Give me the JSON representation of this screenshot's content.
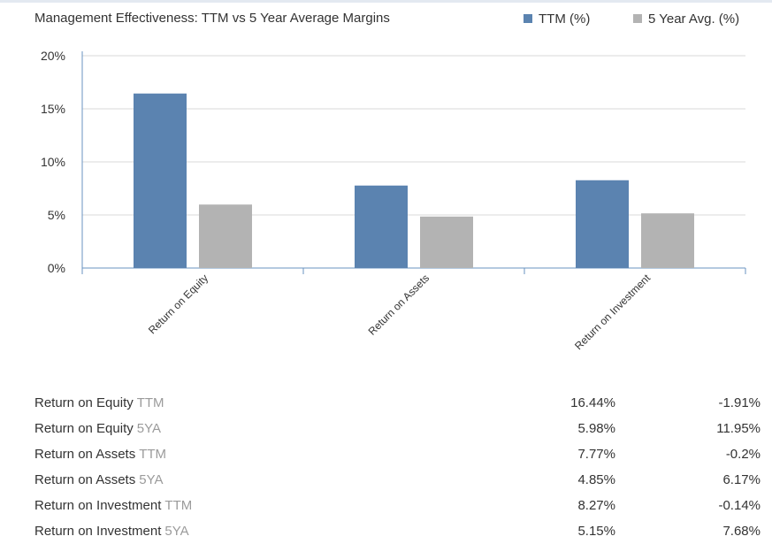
{
  "colors": {
    "ttm": "#5b83b0",
    "avg": "#b3b3b3",
    "axis": "#6a93c2",
    "grid": "#d9d9d9",
    "text": "#333333",
    "muted": "#9b9b9b"
  },
  "chart_data": {
    "type": "bar",
    "title": "Management Effectiveness: TTM vs 5 Year Average Margins",
    "categories": [
      "Return on Equity",
      "Return on Assets",
      "Return on Investment"
    ],
    "series": [
      {
        "name": "TTM (%)",
        "color": "#5b83b0",
        "values": [
          16.44,
          7.77,
          8.27
        ]
      },
      {
        "name": "5 Year Avg. (%)",
        "color": "#b3b3b3",
        "values": [
          5.98,
          4.85,
          5.15
        ]
      }
    ],
    "ylim": [
      0,
      20
    ],
    "yticks": [
      0,
      5,
      10,
      15,
      20
    ],
    "ytick_labels": [
      "0%",
      "5%",
      "10%",
      "15%",
      "20%"
    ],
    "xlabel": "",
    "ylabel": "",
    "grid": true,
    "legend_position": "top-right"
  },
  "table": {
    "rows": [
      {
        "label": "Return on Equity",
        "suffix": "TTM",
        "company": "16.44%",
        "industry": "-1.91%"
      },
      {
        "label": "Return on Equity",
        "suffix": "5YA",
        "company": "5.98%",
        "industry": "11.95%"
      },
      {
        "label": "Return on Assets",
        "suffix": "TTM",
        "company": "7.77%",
        "industry": "-0.2%"
      },
      {
        "label": "Return on Assets",
        "suffix": "5YA",
        "company": "4.85%",
        "industry": "6.17%"
      },
      {
        "label": "Return on Investment",
        "suffix": "TTM",
        "company": "8.27%",
        "industry": "-0.14%"
      },
      {
        "label": "Return on Investment",
        "suffix": "5YA",
        "company": "5.15%",
        "industry": "7.68%"
      }
    ]
  }
}
